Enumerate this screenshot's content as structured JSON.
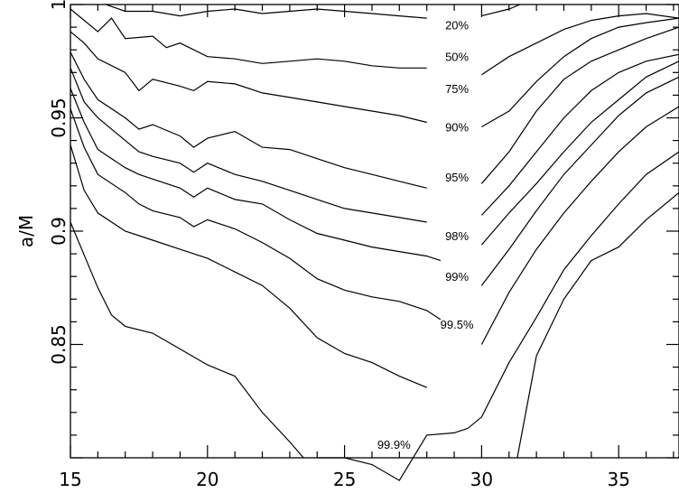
{
  "chart_data": {
    "type": "line",
    "title": "",
    "xlabel": "",
    "ylabel": "a/M",
    "xlim": [
      15,
      37.2
    ],
    "ylim": [
      0.8,
      1.0
    ],
    "grid": false,
    "x_ticks": [
      15,
      20,
      25,
      30,
      35
    ],
    "x_tick_labels": [
      "15",
      "20",
      "25",
      "30",
      "35"
    ],
    "y_ticks": [
      0.85,
      0.9,
      0.95,
      1.0
    ],
    "y_tick_labels": [
      "0.85",
      "0.9",
      "0.95",
      "1"
    ],
    "series": [
      {
        "name": "20%",
        "points": [
          [
            16.3,
            1.0
          ],
          [
            17,
            0.997
          ],
          [
            18,
            0.997
          ],
          [
            19,
            0.995
          ],
          [
            20,
            0.997
          ],
          [
            21,
            0.998
          ],
          [
            22,
            0.996
          ],
          [
            23,
            0.997
          ],
          [
            24,
            0.998
          ],
          [
            25,
            0.997
          ],
          [
            26,
            0.996
          ],
          [
            27,
            0.995
          ],
          [
            28,
            0.994
          ],
          [
            29,
            0.996
          ],
          [
            30,
            0.995
          ],
          [
            31,
            0.998
          ],
          [
            31.4,
            1.0
          ]
        ],
        "label_pos": [
          29.1,
          0.991
        ]
      },
      {
        "name": "50%",
        "points": [
          [
            15,
            0.998
          ],
          [
            16,
            0.988
          ],
          [
            16.5,
            0.994
          ],
          [
            17,
            0.985
          ],
          [
            18,
            0.986
          ],
          [
            18.5,
            0.981
          ],
          [
            19,
            0.983
          ],
          [
            20,
            0.977
          ],
          [
            21,
            0.976
          ],
          [
            22,
            0.974
          ],
          [
            23,
            0.975
          ],
          [
            24,
            0.976
          ],
          [
            25,
            0.975
          ],
          [
            26,
            0.973
          ],
          [
            27,
            0.972
          ],
          [
            28,
            0.972
          ],
          [
            29,
            0.97
          ],
          [
            30,
            0.969
          ],
          [
            31,
            0.977
          ],
          [
            32,
            0.983
          ],
          [
            33,
            0.989
          ],
          [
            34,
            0.993
          ],
          [
            35,
            0.995
          ],
          [
            36,
            0.996
          ],
          [
            37.2,
            0.994
          ]
        ],
        "label_pos": [
          29.1,
          0.977
        ]
      },
      {
        "name": "75%",
        "points": [
          [
            15,
            0.988
          ],
          [
            15.5,
            0.983
          ],
          [
            16,
            0.976
          ],
          [
            17,
            0.97
          ],
          [
            17.5,
            0.962
          ],
          [
            18,
            0.967
          ],
          [
            19,
            0.964
          ],
          [
            19.5,
            0.962
          ],
          [
            20,
            0.966
          ],
          [
            21,
            0.965
          ],
          [
            22,
            0.961
          ],
          [
            23,
            0.959
          ],
          [
            24,
            0.957
          ],
          [
            25,
            0.955
          ],
          [
            26,
            0.953
          ],
          [
            27,
            0.951
          ],
          [
            28,
            0.948
          ],
          [
            29,
            0.946
          ],
          [
            30,
            0.946
          ],
          [
            31,
            0.953
          ],
          [
            32,
            0.966
          ],
          [
            33,
            0.977
          ],
          [
            34,
            0.985
          ],
          [
            35,
            0.99
          ],
          [
            36,
            0.992
          ],
          [
            37.2,
            0.994
          ]
        ],
        "label_pos": [
          29.1,
          0.963
        ]
      },
      {
        "name": "90%",
        "points": [
          [
            15,
            0.979
          ],
          [
            15.5,
            0.967
          ],
          [
            16,
            0.958
          ],
          [
            17,
            0.95
          ],
          [
            17.5,
            0.945
          ],
          [
            18,
            0.947
          ],
          [
            19,
            0.942
          ],
          [
            19.5,
            0.937
          ],
          [
            20,
            0.941
          ],
          [
            21,
            0.944
          ],
          [
            22,
            0.937
          ],
          [
            23,
            0.936
          ],
          [
            24,
            0.932
          ],
          [
            25,
            0.928
          ],
          [
            26,
            0.925
          ],
          [
            27,
            0.922
          ],
          [
            28,
            0.919
          ],
          [
            29,
            0.919
          ],
          [
            30,
            0.921
          ],
          [
            31,
            0.935
          ],
          [
            32,
            0.953
          ],
          [
            33,
            0.967
          ],
          [
            34,
            0.975
          ],
          [
            35,
            0.98
          ],
          [
            36,
            0.985
          ],
          [
            37.2,
            0.99
          ]
        ],
        "label_pos": [
          29.1,
          0.946
        ]
      },
      {
        "name": "95%",
        "points": [
          [
            15,
            0.972
          ],
          [
            15.5,
            0.957
          ],
          [
            16,
            0.95
          ],
          [
            17,
            0.94
          ],
          [
            17.5,
            0.935
          ],
          [
            18,
            0.933
          ],
          [
            19,
            0.93
          ],
          [
            19.5,
            0.926
          ],
          [
            20,
            0.93
          ],
          [
            21,
            0.925
          ],
          [
            22,
            0.922
          ],
          [
            23,
            0.918
          ],
          [
            24,
            0.914
          ],
          [
            25,
            0.91
          ],
          [
            26,
            0.908
          ],
          [
            27,
            0.906
          ],
          [
            28,
            0.904
          ],
          [
            29,
            0.903
          ],
          [
            30,
            0.907
          ],
          [
            31,
            0.92
          ],
          [
            32,
            0.935
          ],
          [
            33,
            0.95
          ],
          [
            34,
            0.962
          ],
          [
            35,
            0.97
          ],
          [
            36,
            0.975
          ],
          [
            37.2,
            0.978
          ]
        ],
        "label_pos": [
          29.1,
          0.924
        ]
      },
      {
        "name": "98%",
        "points": [
          [
            15,
            0.963
          ],
          [
            15.5,
            0.948
          ],
          [
            16,
            0.936
          ],
          [
            17,
            0.928
          ],
          [
            17.5,
            0.925
          ],
          [
            18,
            0.923
          ],
          [
            19,
            0.919
          ],
          [
            19.5,
            0.915
          ],
          [
            20,
            0.919
          ],
          [
            21,
            0.914
          ],
          [
            22,
            0.912
          ],
          [
            23,
            0.905
          ],
          [
            24,
            0.899
          ],
          [
            25,
            0.896
          ],
          [
            26,
            0.893
          ],
          [
            27,
            0.891
          ],
          [
            28,
            0.889
          ],
          [
            28.5,
            0.887
          ],
          [
            29,
            0.888
          ],
          [
            30,
            0.894
          ],
          [
            31,
            0.908
          ],
          [
            32,
            0.921
          ],
          [
            33,
            0.935
          ],
          [
            34,
            0.948
          ],
          [
            35,
            0.958
          ],
          [
            36,
            0.968
          ],
          [
            37.2,
            0.975
          ]
        ],
        "label_pos": [
          29.1,
          0.898
        ]
      },
      {
        "name": "99%",
        "points": [
          [
            15,
            0.954
          ],
          [
            15.5,
            0.937
          ],
          [
            16,
            0.925
          ],
          [
            17,
            0.917
          ],
          [
            17.5,
            0.912
          ],
          [
            18,
            0.909
          ],
          [
            19,
            0.906
          ],
          [
            19.5,
            0.902
          ],
          [
            20,
            0.905
          ],
          [
            21,
            0.901
          ],
          [
            22,
            0.895
          ],
          [
            23,
            0.888
          ],
          [
            24,
            0.879
          ],
          [
            25,
            0.874
          ],
          [
            26,
            0.871
          ],
          [
            27,
            0.869
          ],
          [
            28,
            0.865
          ],
          [
            28.5,
            0.861
          ],
          [
            29,
            0.868
          ],
          [
            30,
            0.876
          ],
          [
            31,
            0.892
          ],
          [
            32,
            0.909
          ],
          [
            33,
            0.925
          ],
          [
            34,
            0.938
          ],
          [
            35,
            0.951
          ],
          [
            36,
            0.961
          ],
          [
            37.2,
            0.968
          ]
        ],
        "label_pos": [
          29.1,
          0.88
        ]
      },
      {
        "name": "99.5%",
        "points": [
          [
            15,
            0.938
          ],
          [
            15.5,
            0.918
          ],
          [
            16,
            0.908
          ],
          [
            17,
            0.9
          ],
          [
            18,
            0.896
          ],
          [
            19,
            0.892
          ],
          [
            20,
            0.888
          ],
          [
            21,
            0.882
          ],
          [
            22,
            0.876
          ],
          [
            23,
            0.866
          ],
          [
            24,
            0.853
          ],
          [
            25,
            0.846
          ],
          [
            26,
            0.842
          ],
          [
            27,
            0.836
          ],
          [
            28,
            0.831
          ],
          [
            28.5,
            0.827
          ],
          [
            29,
            0.831
          ],
          [
            30,
            0.85
          ],
          [
            31,
            0.873
          ],
          [
            32,
            0.892
          ],
          [
            33,
            0.908
          ],
          [
            34,
            0.922
          ],
          [
            35,
            0.935
          ],
          [
            36,
            0.946
          ],
          [
            37.2,
            0.955
          ]
        ],
        "label_pos": [
          29.1,
          0.859
        ]
      },
      {
        "name": "99.9%",
        "points": [
          [
            15,
            0.904
          ],
          [
            16,
            0.875
          ],
          [
            16.5,
            0.863
          ],
          [
            17,
            0.858
          ],
          [
            18,
            0.855
          ],
          [
            19,
            0.848
          ],
          [
            20,
            0.841
          ],
          [
            21,
            0.836
          ],
          [
            22,
            0.82
          ],
          [
            23,
            0.807
          ],
          [
            23.5,
            0.8
          ]
        ],
        "label_pos": [
          26.8,
          0.806
        ]
      },
      {
        "name": "",
        "points": [
          [
            24,
            0.8
          ],
          [
            25,
            0.8
          ],
          [
            26,
            0.797
          ],
          [
            27,
            0.79
          ],
          [
            28,
            0.81
          ],
          [
            29,
            0.811
          ],
          [
            29.5,
            0.813
          ],
          [
            30,
            0.818
          ],
          [
            31,
            0.842
          ],
          [
            32,
            0.862
          ],
          [
            33,
            0.883
          ],
          [
            34,
            0.898
          ],
          [
            35,
            0.912
          ],
          [
            36,
            0.925
          ],
          [
            37.2,
            0.935
          ]
        ]
      },
      {
        "name": "",
        "points": [
          [
            31.3,
            0.8
          ],
          [
            32,
            0.845
          ],
          [
            33,
            0.87
          ],
          [
            34,
            0.887
          ],
          [
            35,
            0.893
          ],
          [
            36,
            0.905
          ],
          [
            37.2,
            0.917
          ]
        ]
      }
    ]
  }
}
